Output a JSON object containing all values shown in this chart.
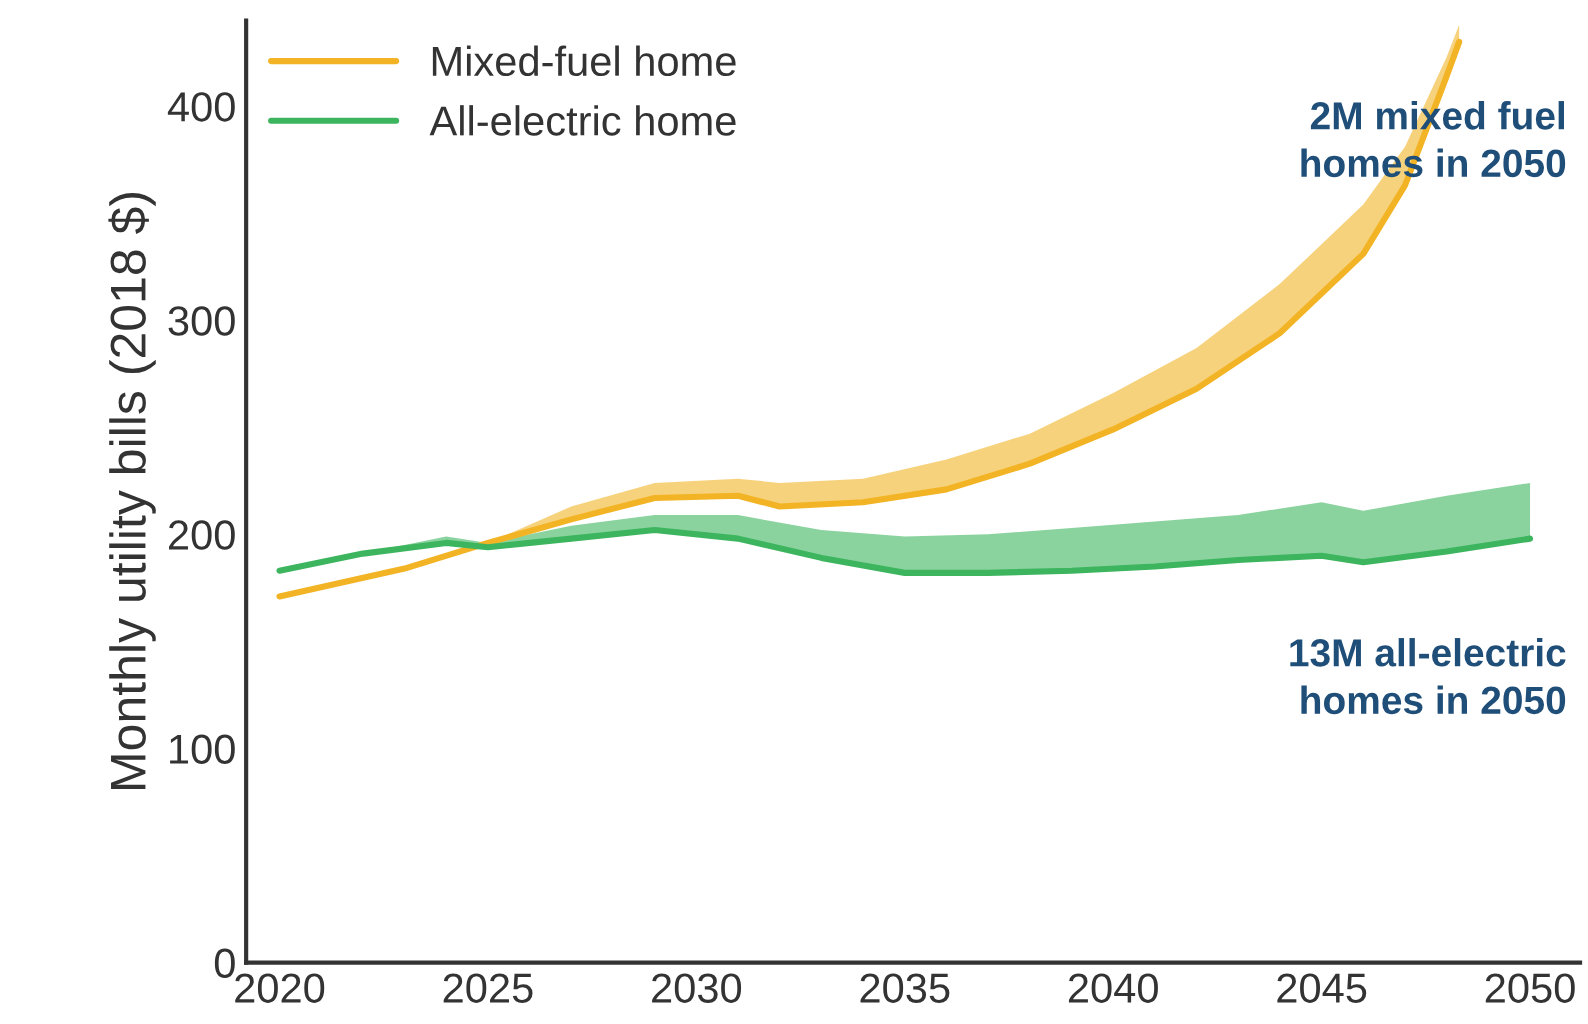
{
  "chart_data": {
    "type": "line",
    "ylabel": "Monthly utility bills (2018 $)",
    "xlim": [
      2019.2,
      2051.2
    ],
    "xticks": [
      2020,
      2025,
      2030,
      2035,
      2040,
      2045,
      2050
    ],
    "ylim": [
      0,
      440
    ],
    "yticks": [
      0,
      100,
      200,
      300,
      400
    ],
    "grid": false,
    "legend": "top left",
    "series": [
      {
        "name": "Mixed-fuel home",
        "color": "#f2b425",
        "x": [
          2020,
          2023,
          2025,
          2027,
          2029,
          2031,
          2032,
          2034,
          2036,
          2038,
          2040,
          2042,
          2044,
          2046,
          2047,
          2048,
          2048.3
        ],
        "values": [
          171,
          184,
          196,
          207,
          217,
          218,
          213,
          215,
          221,
          233,
          249,
          268,
          294,
          331,
          363,
          414,
          430
        ],
        "lower": [
          171,
          184,
          196,
          207,
          217,
          218,
          213,
          215,
          221,
          233,
          249,
          268,
          294,
          331,
          363,
          414,
          430
        ],
        "upper": [
          171,
          184,
          196,
          213,
          224,
          226,
          224,
          226,
          235,
          247,
          266,
          287,
          317,
          354,
          381,
          423,
          438
        ]
      },
      {
        "name": "All-electric home",
        "color": "#3cb55e",
        "x": [
          2020,
          2022,
          2024,
          2025,
          2027,
          2029,
          2031,
          2033,
          2035,
          2037,
          2039,
          2041,
          2043,
          2045,
          2046,
          2048,
          2050
        ],
        "values": [
          183,
          191,
          196,
          194,
          198,
          202,
          198,
          189,
          182,
          182,
          183,
          185,
          188,
          190,
          187,
          192,
          198
        ],
        "lower": [
          183,
          191,
          196,
          194,
          198,
          202,
          198,
          189,
          182,
          182,
          183,
          185,
          188,
          190,
          187,
          192,
          198
        ],
        "upper": [
          183,
          191,
          199,
          196,
          204,
          209,
          209,
          202,
          199,
          200,
          203,
          206,
          209,
          215,
          211,
          218,
          224
        ]
      }
    ],
    "annotations": [
      "2M mixed fuel\nhomes in 2050",
      "13M all-electric\nhomes in 2050"
    ]
  }
}
